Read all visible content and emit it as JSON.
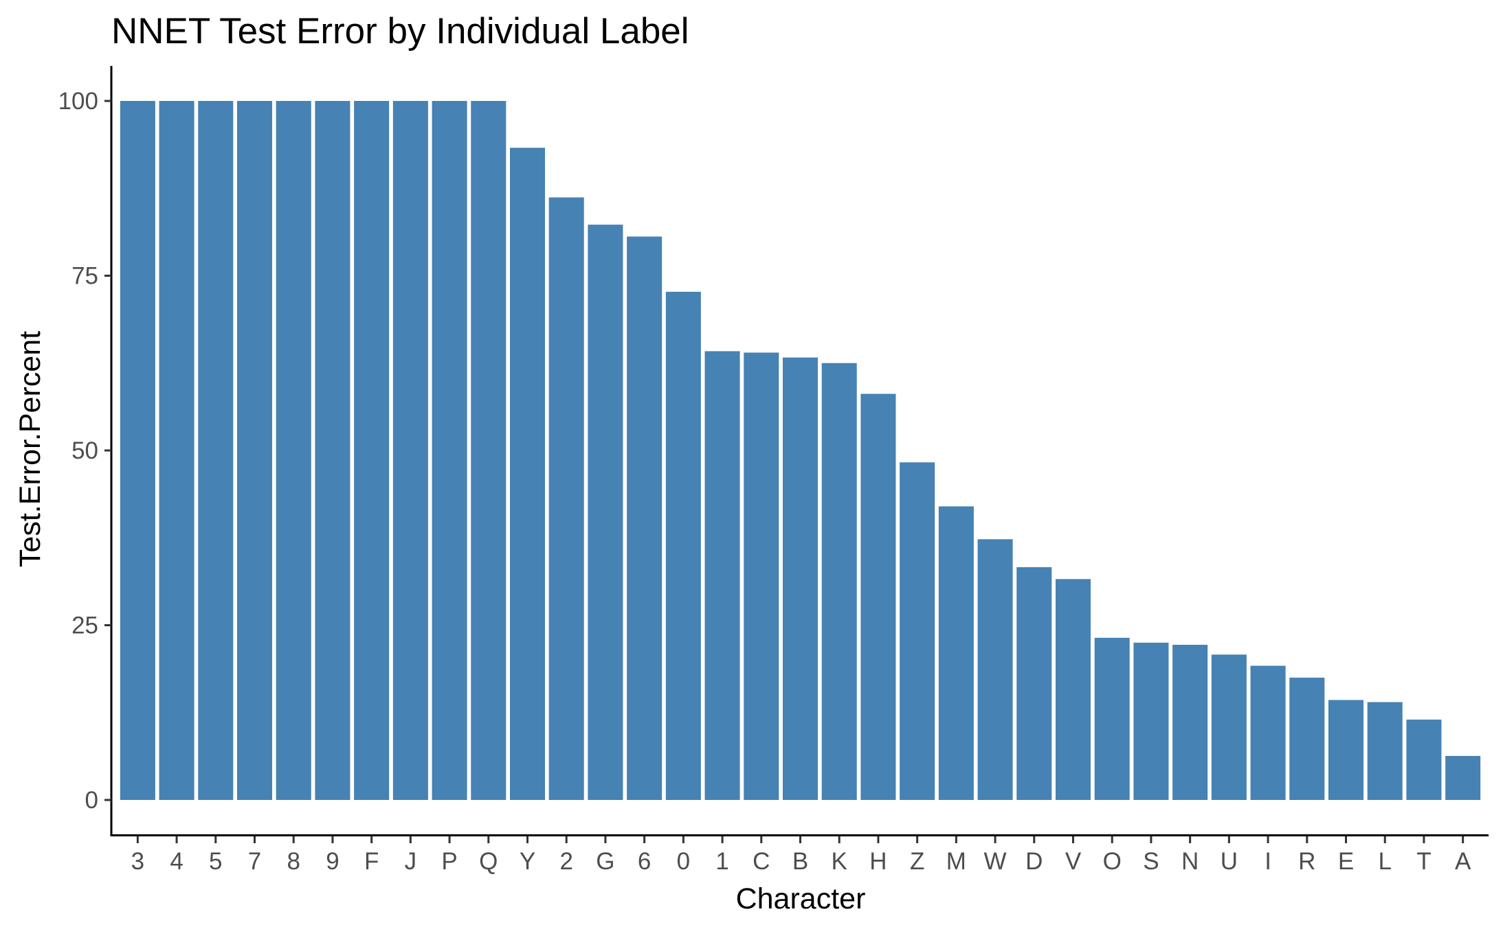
{
  "chart_data": {
    "type": "bar",
    "title": "NNET Test Error by Individual Label",
    "xlabel": "Character",
    "ylabel": "Test.Error.Percent",
    "ylim": [
      0,
      100
    ],
    "yticks": [
      "0",
      "25",
      "50",
      "75",
      "100"
    ],
    "grid": false,
    "categories": [
      "3",
      "4",
      "5",
      "7",
      "8",
      "9",
      "F",
      "J",
      "P",
      "Q",
      "Y",
      "2",
      "G",
      "6",
      "0",
      "1",
      "C",
      "B",
      "K",
      "H",
      "Z",
      "M",
      "W",
      "D",
      "V",
      "O",
      "S",
      "N",
      "U",
      "I",
      "R",
      "E",
      "L",
      "T",
      "A"
    ],
    "values": [
      100,
      100,
      100,
      100,
      100,
      100,
      100,
      100,
      100,
      100,
      93.3,
      86.2,
      82.3,
      80.6,
      72.7,
      64.2,
      64.0,
      63.3,
      62.5,
      58.1,
      48.3,
      42.0,
      37.3,
      33.3,
      31.6,
      23.2,
      22.5,
      22.2,
      20.8,
      19.2,
      17.5,
      14.3,
      14.0,
      11.5,
      6.3
    ],
    "bar_color": "#4682b4"
  }
}
